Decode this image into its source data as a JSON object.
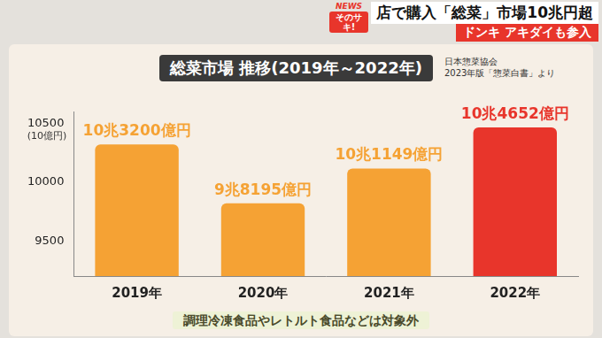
{
  "header": {
    "badge": [
      "NEWS",
      "そのサキ!"
    ],
    "headline": "店で購入「総菜」市場10兆円超",
    "subheadline": "ドンキ アキダイも参入"
  },
  "chart_data": {
    "type": "bar",
    "title": "総菜市場 推移(2019年～2022年)",
    "source": [
      "日本惣菜協会",
      "2023年版「惣菜白書」より"
    ],
    "ylabel": "(10億円)",
    "categories": [
      "2019年",
      "2020年",
      "2021年",
      "2022年"
    ],
    "values": [
      10320,
      9819.5,
      10114.9,
      10465.2
    ],
    "value_labels": [
      "10兆3200億円",
      "9兆8195億円",
      "10兆1149億円",
      "10兆4652億円"
    ],
    "colors": [
      "#f5a234",
      "#f5a234",
      "#f5a234",
      "#e8352b"
    ],
    "ylim": [
      9200,
      10600
    ],
    "yticks": [
      9500,
      10000,
      10500
    ],
    "grid": false,
    "data_labels": true,
    "note": "調理冷凍食品やレトルト食品などは対象外"
  }
}
